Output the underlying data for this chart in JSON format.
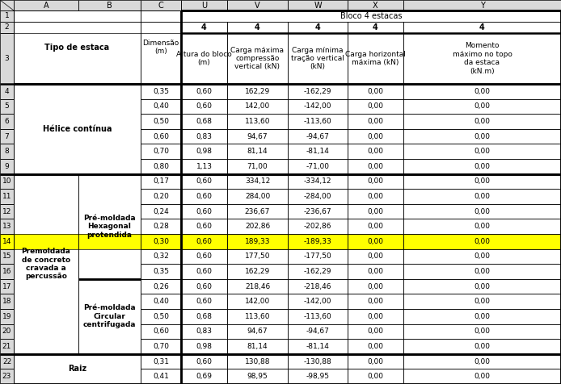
{
  "col_letters": [
    "A",
    "B",
    "C",
    "U",
    "V",
    "W",
    "X",
    "Y"
  ],
  "header_row1_text": "Bloco 4 estacas",
  "header_row2_vals": [
    "4",
    "4",
    "4",
    "4",
    "4"
  ],
  "header_row3_AB": "Tipo de estaca",
  "header_row3_C": "Dimensão\n(m)",
  "header_row3_U": "Altura do bloco\n(m)",
  "header_row3_V": "Carga máxima\ncompressão\nvertical (kN)",
  "header_row3_W": "Carga mínima\ntração vertical\n(kN)",
  "header_row3_X": "Carga horizontal\nmáxima (kN)",
  "header_row3_Y": "Momento\nmáximo no topo\nda estaca\n(kN.m)",
  "merged_A_helice": "Hélice contínua",
  "merged_A_premoldada": "Premoldada\nde concreto\ncravada a\npercussão",
  "merged_A_raiz": "Raiz",
  "merged_B_hexagonal": "Pré-moldada\nHexagonal\nprotendida",
  "merged_B_circular": "Pré-moldada\nCircular\ncentrifugada",
  "col_C": [
    "0,35",
    "0,40",
    "0,50",
    "0,60",
    "0,70",
    "0,80",
    "0,17",
    "0,20",
    "0,24",
    "0,28",
    "0,30",
    "0,32",
    "0,35",
    "0,26",
    "0,40",
    "0,50",
    "0,60",
    "0,70",
    "0,31",
    "0,41"
  ],
  "col_U": [
    "0,60",
    "0,60",
    "0,68",
    "0,83",
    "0,98",
    "1,13",
    "0,60",
    "0,60",
    "0,60",
    "0,60",
    "0,60",
    "0,60",
    "0,60",
    "0,60",
    "0,60",
    "0,68",
    "0,83",
    "0,98",
    "0,60",
    "0,69"
  ],
  "col_V": [
    "162,29",
    "142,00",
    "113,60",
    "94,67",
    "81,14",
    "71,00",
    "334,12",
    "284,00",
    "236,67",
    "202,86",
    "189,33",
    "177,50",
    "162,29",
    "218,46",
    "142,00",
    "113,60",
    "94,67",
    "81,14",
    "130,88",
    "98,95"
  ],
  "col_W": [
    "-162,29",
    "-142,00",
    "-113,60",
    "-94,67",
    "-81,14",
    "-71,00",
    "-334,12",
    "-284,00",
    "-236,67",
    "-202,86",
    "-189,33",
    "-177,50",
    "-162,29",
    "-218,46",
    "-142,00",
    "-113,60",
    "-94,67",
    "-81,14",
    "-130,88",
    "-98,95"
  ],
  "col_X": [
    "0,00",
    "0,00",
    "0,00",
    "0,00",
    "0,00",
    "0,00",
    "0,00",
    "0,00",
    "0,00",
    "0,00",
    "0,00",
    "0,00",
    "0,00",
    "0,00",
    "0,00",
    "0,00",
    "0,00",
    "0,00",
    "0,00",
    "0,00"
  ],
  "col_Y": [
    "0,00",
    "0,00",
    "0,00",
    "0,00",
    "0,00",
    "0,00",
    "0,00",
    "0,00",
    "0,00",
    "0,00",
    "0,00",
    "0,00",
    "0,00",
    "0,00",
    "0,00",
    "0,00",
    "0,00",
    "0,00",
    "0,00",
    "0,00"
  ],
  "highlight_row_idx": 10,
  "highlight_color": "#ffff00",
  "gray_bg": "#d9d9d9",
  "white_bg": "#ffffff",
  "thin_lw": 0.5,
  "thick_lw": 1.8,
  "font_size_data": 6.5,
  "font_size_header": 7.0,
  "font_size_col_letters": 7.0,
  "font_size_row_nums": 6.5
}
